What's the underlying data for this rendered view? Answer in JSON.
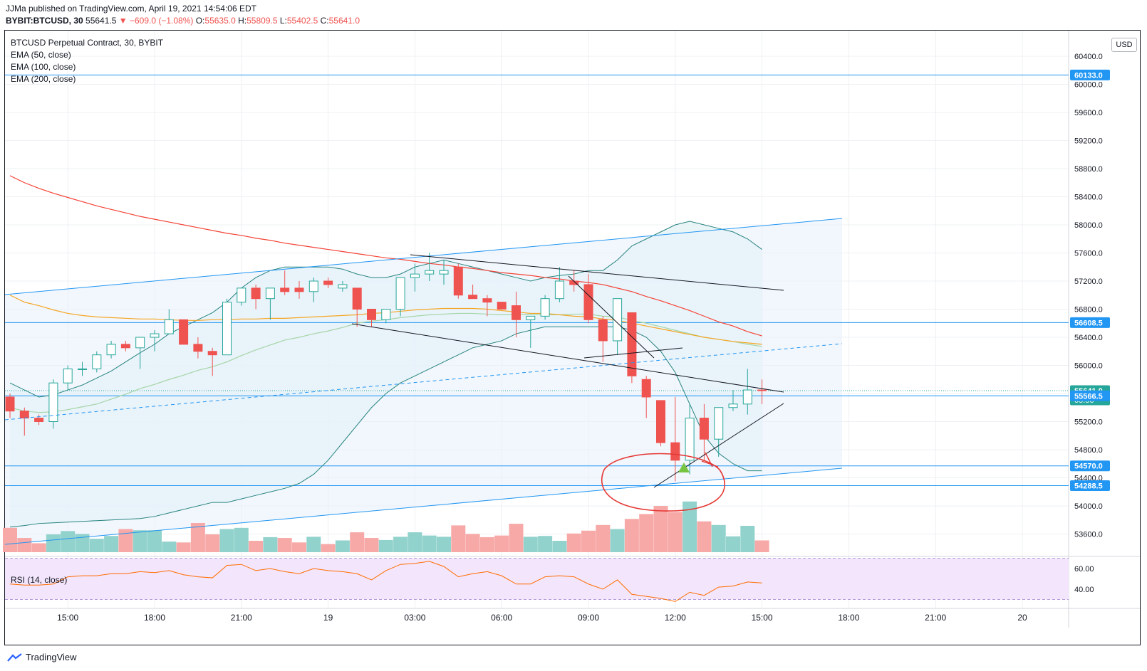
{
  "header": {
    "publisher_line": "JJMa published on TradingView.com, April 19, 2021 14:54:06 EDT",
    "symbol": "BYBIT:BTCUSD, 30",
    "last": "55641.5",
    "change": "▼ −609.0 (−1.08%)",
    "o_label": "O:",
    "o": "55635.0",
    "h_label": "H:",
    "h": "55809.5",
    "l_label": "L:",
    "l": "55402.5",
    "c_label": "C:",
    "c": "55641.0"
  },
  "legends": {
    "main": "BTCUSD Perpetual Contract, 30, BYBIT",
    "ema50": "EMA (50, close)",
    "ema100": "EMA (100, close)",
    "ema200": "EMA (200, close)",
    "rsi": "RSI (14, close)"
  },
  "currency_button": "USD",
  "brand": "TradingView",
  "price_labels": [
    {
      "value": 60133.0,
      "text": "60133.0",
      "color": "#2196f3"
    },
    {
      "value": 56608.5,
      "text": "56608.5",
      "color": "#2196f3"
    },
    {
      "value": 55641.0,
      "text": "55641.0",
      "sub": "05:56",
      "color": "#26a69a"
    },
    {
      "value": 55566.5,
      "text": "55566.5",
      "color": "#2196f3"
    },
    {
      "value": 54570.0,
      "text": "54570.0",
      "color": "#2196f3"
    },
    {
      "value": 54288.5,
      "text": "54288.5",
      "color": "#2196f3"
    }
  ],
  "chart_data": {
    "type": "candlestick",
    "y_axis": {
      "min": 53200,
      "max": 60800,
      "ticks": [
        53600,
        54000,
        54400,
        54800,
        55200,
        55600,
        56000,
        56400,
        56800,
        57200,
        57600,
        58000,
        58400,
        58800,
        59200,
        59600,
        60000,
        60400
      ],
      "tick_labels": [
        "53600.0",
        "54000.0",
        "54400.0",
        "54800.0",
        "55200.0",
        "55600.0",
        "56000.0",
        "56400.0",
        "56800.0",
        "57200.0",
        "57600.0",
        "58000.0",
        "58400.0",
        "58800.0",
        "59200.0",
        "59600.0",
        "60000.0",
        "60400.0"
      ]
    },
    "x_axis": {
      "ticks": [
        {
          "bar": 4,
          "label": "15:00"
        },
        {
          "bar": 10,
          "label": "18:00"
        },
        {
          "bar": 16,
          "label": "21:00"
        },
        {
          "bar": 22,
          "label": "19"
        },
        {
          "bar": 28,
          "label": "03:00"
        },
        {
          "bar": 34,
          "label": "06:00"
        },
        {
          "bar": 40,
          "label": "09:00"
        },
        {
          "bar": 46,
          "label": "12:00"
        },
        {
          "bar": 52,
          "label": "15:00"
        },
        {
          "bar": 58,
          "label": "18:00"
        },
        {
          "bar": 64,
          "label": "21:00"
        },
        {
          "bar": 70,
          "label": "20"
        }
      ]
    },
    "candles": [
      [
        55550,
        55600,
        55250,
        55350
      ],
      [
        55350,
        55400,
        55000,
        55250
      ],
      [
        55250,
        55300,
        55150,
        55200
      ],
      [
        55200,
        55800,
        55100,
        55750
      ],
      [
        55750,
        56000,
        55650,
        55950
      ],
      [
        55950,
        56050,
        55850,
        55950
      ],
      [
        55950,
        56200,
        55900,
        56150
      ],
      [
        56150,
        56350,
        56100,
        56300
      ],
      [
        56300,
        56350,
        56200,
        56250
      ],
      [
        56250,
        56400,
        55950,
        56400
      ],
      [
        56400,
        56500,
        56200,
        56450
      ],
      [
        56450,
        56800,
        56450,
        56650
      ],
      [
        56650,
        56650,
        56300,
        56300
      ],
      [
        56300,
        56400,
        56100,
        56200
      ],
      [
        56200,
        56250,
        55850,
        56150
      ],
      [
        56150,
        56950,
        56150,
        56900
      ],
      [
        56900,
        57100,
        56850,
        57100
      ],
      [
        57100,
        57150,
        56800,
        56950
      ],
      [
        56950,
        57100,
        56650,
        57100
      ],
      [
        57100,
        57350,
        57000,
        57050
      ],
      [
        57100,
        57200,
        56950,
        57050
      ],
      [
        57050,
        57250,
        56900,
        57200
      ],
      [
        57200,
        57250,
        57100,
        57150
      ],
      [
        57100,
        57200,
        57050,
        57150
      ],
      [
        57100,
        57100,
        56550,
        56800
      ],
      [
        56800,
        56800,
        56550,
        56650
      ],
      [
        56650,
        56800,
        56600,
        56800
      ],
      [
        56800,
        57200,
        56700,
        57250
      ],
      [
        57250,
        57450,
        57050,
        57300
      ],
      [
        57300,
        57600,
        57200,
        57350
      ],
      [
        57300,
        57500,
        57150,
        57350
      ],
      [
        57400,
        57450,
        56950,
        57000
      ],
      [
        57000,
        57150,
        56950,
        56950
      ],
      [
        56950,
        57000,
        56700,
        56900
      ],
      [
        56900,
        56900,
        56800,
        56800
      ],
      [
        56850,
        57050,
        56400,
        56650
      ],
      [
        56650,
        56700,
        56250,
        56700
      ],
      [
        56700,
        57000,
        56650,
        56950
      ],
      [
        56950,
        57400,
        56900,
        57200
      ],
      [
        57200,
        57350,
        57050,
        57150
      ],
      [
        57150,
        57300,
        56600,
        56650
      ],
      [
        56650,
        56700,
        56050,
        56350
      ],
      [
        56350,
        56950,
        56150,
        56950
      ],
      [
        56750,
        56750,
        55750,
        55850
      ],
      [
        55800,
        55850,
        55250,
        55550
      ],
      [
        55500,
        55500,
        54850,
        54900
      ],
      [
        54900,
        55550,
        54350,
        54650
      ],
      [
        54650,
        55450,
        54450,
        55250
      ],
      [
        55250,
        55450,
        54650,
        54950
      ],
      [
        54950,
        55400,
        54700,
        55400
      ],
      [
        55400,
        55650,
        55350,
        55450
      ],
      [
        55450,
        55950,
        55300,
        55650
      ],
      [
        55650,
        55800,
        55450,
        55640
      ]
    ],
    "volume": [
      60,
      35,
      22,
      44,
      52,
      45,
      33,
      40,
      57,
      54,
      54,
      26,
      24,
      72,
      44,
      57,
      60,
      28,
      37,
      35,
      24,
      38,
      20,
      29,
      49,
      35,
      30,
      38,
      49,
      41,
      38,
      66,
      45,
      37,
      41,
      70,
      38,
      40,
      28,
      46,
      53,
      67,
      57,
      82,
      94,
      114,
      99,
      125,
      76,
      67,
      39,
      65,
      29
    ],
    "ema50": [
      55400,
      55350,
      55330,
      55340,
      55370,
      55410,
      55450,
      55520,
      55590,
      55670,
      55730,
      55800,
      55860,
      55930,
      55980,
      56050,
      56140,
      56220,
      56290,
      56360,
      56400,
      56450,
      56490,
      56540,
      56600,
      56630,
      56650,
      56680,
      56700,
      56720,
      56730,
      56740,
      56740,
      56730,
      56720,
      56720,
      56730,
      56720,
      56720,
      56730,
      56730,
      56700,
      56690,
      56640,
      56600,
      56550,
      56500,
      56450,
      56400,
      56370,
      56340,
      56300,
      56270
    ],
    "ema100": [
      57000,
      56900,
      56850,
      56790,
      56740,
      56710,
      56690,
      56680,
      56670,
      56660,
      56660,
      56650,
      56640,
      56640,
      56650,
      56650,
      56660,
      56660,
      56670,
      56670,
      56680,
      56690,
      56700,
      56710,
      56720,
      56740,
      56750,
      56770,
      56790,
      56800,
      56810,
      56810,
      56810,
      56800,
      56780,
      56760,
      56740,
      56740,
      56720,
      56700,
      56690,
      56660,
      56640,
      56600,
      56560,
      56520,
      56480,
      56440,
      56400,
      56370,
      56340,
      56320,
      56300
    ],
    "ema200": [
      58700,
      58600,
      58520,
      58450,
      58390,
      58330,
      58270,
      58220,
      58170,
      58120,
      58080,
      58040,
      58000,
      57960,
      57920,
      57880,
      57850,
      57810,
      57780,
      57740,
      57710,
      57680,
      57650,
      57620,
      57590,
      57560,
      57530,
      57510,
      57480,
      57450,
      57430,
      57400,
      57380,
      57350,
      57320,
      57300,
      57280,
      57250,
      57230,
      57200,
      57180,
      57150,
      57100,
      57050,
      56980,
      56920,
      56850,
      56780,
      56700,
      56620,
      56560,
      56480,
      56420
    ],
    "bb_upper": [
      55750,
      55650,
      55550,
      55580,
      55650,
      55720,
      55820,
      55920,
      56050,
      56180,
      56300,
      56450,
      56550,
      56650,
      56750,
      56900,
      57100,
      57250,
      57350,
      57400,
      57400,
      57400,
      57400,
      57370,
      57300,
      57250,
      57250,
      57300,
      57400,
      57450,
      57500,
      57450,
      57400,
      57350,
      57300,
      57250,
      57200,
      57250,
      57280,
      57300,
      57350,
      57350,
      57500,
      57700,
      57800,
      57900,
      58000,
      58050,
      58000,
      57950,
      57900,
      57800,
      57650
    ],
    "bb_lower": [
      53700,
      53720,
      53750,
      53760,
      53770,
      53780,
      53790,
      53800,
      53810,
      53820,
      53850,
      53900,
      53950,
      54000,
      54050,
      54050,
      54100,
      54150,
      54200,
      54250,
      54320,
      54450,
      54650,
      54900,
      55150,
      55400,
      55600,
      55750,
      55850,
      55950,
      56050,
      56150,
      56250,
      56300,
      56350,
      56450,
      56500,
      56550,
      56550,
      56550,
      56550,
      56550,
      56550,
      56500,
      56400,
      56200,
      55900,
      55450,
      55000,
      54750,
      54600,
      54500,
      54500
    ],
    "rsi": [
      45,
      44,
      44,
      45,
      52,
      53,
      53,
      55,
      55,
      57,
      56,
      58,
      54,
      52,
      51,
      63,
      64,
      58,
      60,
      57,
      55,
      60,
      58,
      57,
      55,
      49,
      58,
      64,
      65,
      67,
      62,
      52,
      55,
      57,
      53,
      45,
      45,
      52,
      53,
      52,
      45,
      40,
      49,
      35,
      33,
      31,
      28,
      37,
      34,
      42,
      43,
      47,
      46
    ],
    "horizontal_levels": [
      60133.0,
      56608.5,
      55566.5,
      54570.0,
      54288.5
    ],
    "rsi_axis": {
      "labels": [
        "60.00",
        "40.00"
      ],
      "values": [
        60,
        40
      ],
      "band": [
        30,
        70
      ]
    }
  }
}
